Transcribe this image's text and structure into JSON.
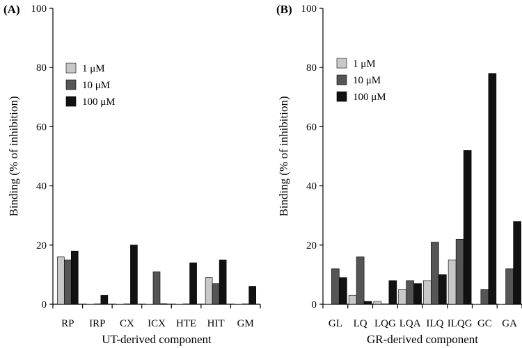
{
  "chart_data": [
    {
      "panel_label": "(A)",
      "type": "bar",
      "xlabel": "UT-derived component",
      "ylabel": "Binding (% of inhibition)",
      "ylim": [
        0,
        100
      ],
      "yticks": [
        0,
        20,
        40,
        60,
        80,
        100
      ],
      "grid": false,
      "legend_position": "upper-left",
      "categories": [
        "RP",
        "IRP",
        "CX",
        "ICX",
        "HTE",
        "HIT",
        "GM"
      ],
      "series": [
        {
          "name": "1 μM",
          "color": "#c8c8c8",
          "values": [
            16,
            0,
            0,
            0,
            0,
            9,
            0
          ]
        },
        {
          "name": "10 μM",
          "color": "#555555",
          "values": [
            15,
            0,
            0,
            11,
            0,
            7,
            0
          ]
        },
        {
          "name": "100 μM",
          "color": "#111111",
          "values": [
            18,
            3,
            20,
            0,
            14,
            15,
            6
          ]
        }
      ]
    },
    {
      "panel_label": "(B)",
      "type": "bar",
      "xlabel": "GR-derived component",
      "ylabel": "Binding (% of inhibition)",
      "ylim": [
        0,
        100
      ],
      "yticks": [
        0,
        20,
        40,
        60,
        80,
        100
      ],
      "grid": false,
      "legend_position": "upper-left",
      "categories": [
        "GL",
        "LQ",
        "LQG",
        "LQA",
        "ILQ",
        "ILQG",
        "GC",
        "GA"
      ],
      "series": [
        {
          "name": "1 μM",
          "color": "#c8c8c8",
          "values": [
            0,
            3,
            1,
            5,
            8,
            15,
            0,
            0
          ]
        },
        {
          "name": "10 μM",
          "color": "#555555",
          "values": [
            12,
            16,
            0,
            8,
            21,
            22,
            5,
            12
          ]
        },
        {
          "name": "100 μM",
          "color": "#111111",
          "values": [
            9,
            1,
            8,
            7,
            10,
            52,
            78,
            28
          ]
        }
      ]
    }
  ]
}
